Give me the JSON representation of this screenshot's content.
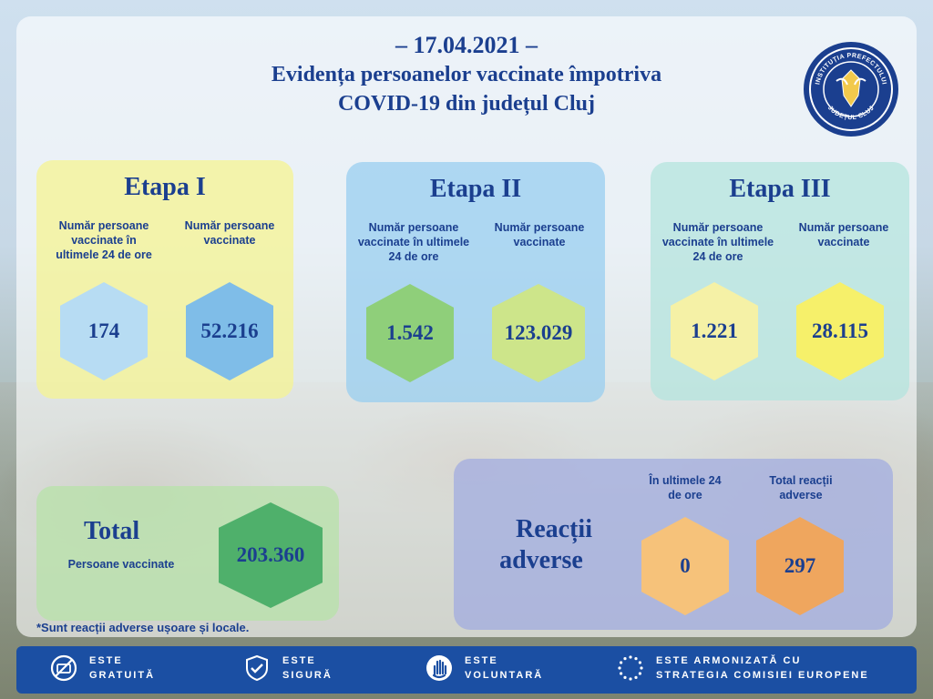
{
  "header": {
    "date": "– 17.04.2021 –",
    "title_line1": "Evidența persoanelor vaccinate împotriva",
    "title_line2": "COVID-19 din județul Cluj"
  },
  "logo": {
    "icon": "prefecture-crest-icon",
    "text_top": "INSTITUȚIA PREFECTULUI",
    "text_bottom": "JUDEȚUL CLUJ"
  },
  "stages": [
    {
      "title": "Etapa I",
      "label_24h": "Număr persoane vaccinate în ultimele 24 de ore",
      "label_total": "Număr persoane vaccinate",
      "value_24h": "174",
      "value_total": "52.216"
    },
    {
      "title": "Etapa II",
      "label_24h": "Număr persoane vaccinate în ultimele 24 de ore",
      "label_total": "Număr persoane vaccinate",
      "value_24h": "1.542",
      "value_total": "123.029"
    },
    {
      "title": "Etapa III",
      "label_24h": "Număr persoane vaccinate în ultimele 24 de ore",
      "label_total": "Număr persoane vaccinate",
      "value_24h": "1.221",
      "value_total": "28.115"
    }
  ],
  "total": {
    "title": "Total",
    "subtitle": "Persoane vaccinate",
    "value": "203.360"
  },
  "adverse": {
    "title_line1": "Reacții",
    "title_line2": "adverse",
    "label_24h": "În ultimele 24 de ore",
    "label_total": "Total reacții adverse",
    "value_24h": "0",
    "value_total": "297"
  },
  "footnote": "*Sunt reacții adverse ușoare și locale.",
  "footer": [
    {
      "icon": "free-icon",
      "text": "ESTE\nGRATUITĂ"
    },
    {
      "icon": "shield-check-icon",
      "text": "ESTE\nSIGURĂ"
    },
    {
      "icon": "raised-hand-icon",
      "text": "ESTE\nVOLUNTARĂ"
    },
    {
      "icon": "eu-stars-icon",
      "text": "ESTE ARMONIZATĂ CU\nSTRATEGIA COMISIEI EUROPENE"
    }
  ],
  "colors": {
    "brand_blue": "#1b3f8f",
    "stage1": "#f5f3a6",
    "stage2": "#a9d8f2",
    "stage3": "#bfe6e2",
    "total": "#bfe3b0",
    "adverse": "#aab5e6",
    "hex_light_blue": "#b7dcf3",
    "hex_blue": "#7fbde8",
    "hex_green": "#8fcf7a",
    "hex_light_green": "#cde58a",
    "hex_cream": "#f5f1a6",
    "hex_yellow": "#f6f06a",
    "hex_total_green": "#4fb06b",
    "hex_orange_light": "#f6c27a",
    "hex_orange": "#efa65e",
    "footer_blue": "#1b4fa3"
  }
}
